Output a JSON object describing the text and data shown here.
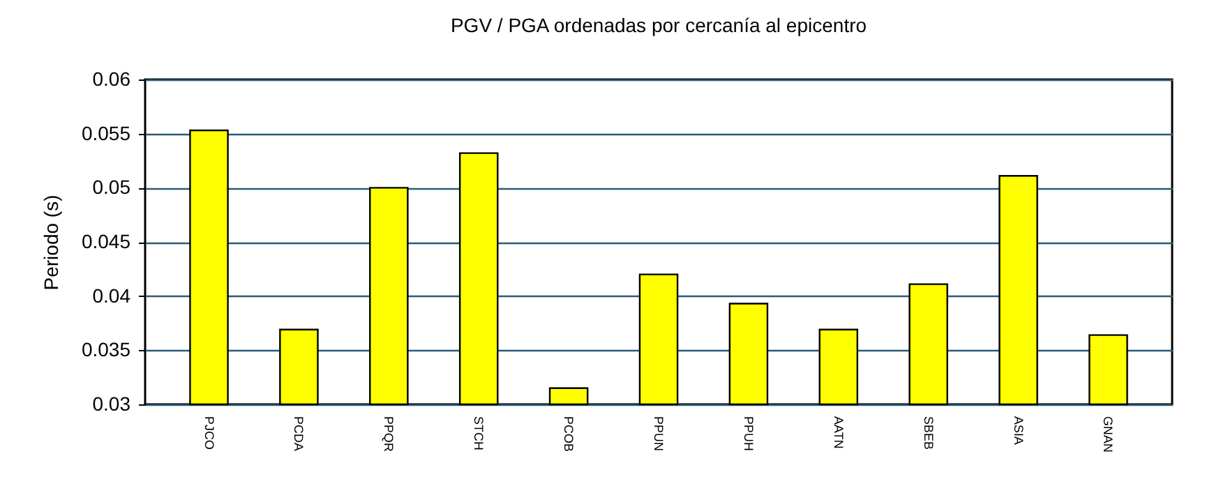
{
  "chart_data": {
    "type": "bar",
    "title": "PGV / PGA ordenadas por cercanía al epicentro",
    "ylabel": "Periodo (s)",
    "categories": [
      "PJCO",
      "PCDA",
      "PPQR",
      "STCH",
      "PCOB",
      "PPUN",
      "PPUH",
      "AATN",
      "SBEB",
      "ASIA",
      "GNAN"
    ],
    "values": [
      0.0553,
      0.0369,
      0.05,
      0.0532,
      0.0315,
      0.042,
      0.0393,
      0.0369,
      0.0411,
      0.0511,
      0.0364
    ],
    "color": "#ffff00",
    "ylim": [
      0.03,
      0.06
    ],
    "yticks": [
      0.03,
      0.035,
      0.04,
      0.045,
      0.05,
      0.055,
      0.06
    ],
    "grid": "y"
  }
}
